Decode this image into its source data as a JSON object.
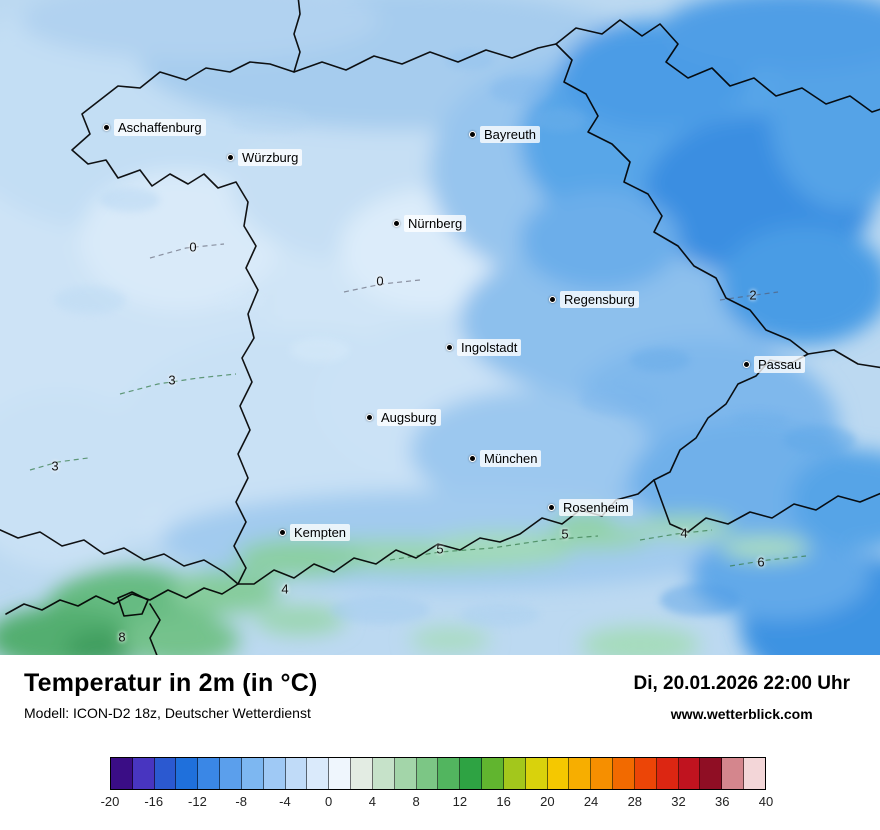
{
  "map": {
    "cities": [
      {
        "name": "Aschaffenburg"
      },
      {
        "name": "Würzburg"
      },
      {
        "name": "Bayreuth"
      },
      {
        "name": "Nürnberg"
      },
      {
        "name": "Regensburg"
      },
      {
        "name": "Ingolstadt"
      },
      {
        "name": "Passau"
      },
      {
        "name": "Augsburg"
      },
      {
        "name": "München"
      },
      {
        "name": "Rosenheim"
      },
      {
        "name": "Kempten"
      }
    ],
    "temp_labels": [
      {
        "value": "0"
      },
      {
        "value": "0"
      },
      {
        "value": "2"
      },
      {
        "value": "3"
      },
      {
        "value": "3"
      },
      {
        "value": "5"
      },
      {
        "value": "5"
      },
      {
        "value": "4"
      },
      {
        "value": "4"
      },
      {
        "value": "6"
      },
      {
        "value": "8"
      }
    ]
  },
  "footer": {
    "title": "Temperatur in 2m (in °C)",
    "model": "Modell: ICON-D2 18z, Deutscher Wetterdienst",
    "datetime": "Di, 20.01.2026 22:00 Uhr",
    "website": "www.wetterblick.com"
  },
  "legend": {
    "unit": "°C",
    "min": -20,
    "max": 40,
    "degrees_per_segment": 2,
    "tick_labels": [
      "-20",
      "-16",
      "-12",
      "-8",
      "-4",
      "0",
      "4",
      "8",
      "12",
      "16",
      "20",
      "24",
      "28",
      "32",
      "36",
      "40"
    ],
    "segment_colors": [
      "#3a0d85",
      "#4835c0",
      "#2b59d0",
      "#1f70dc",
      "#3a87e6",
      "#5b9fec",
      "#7db7f1",
      "#9fc9f5",
      "#c0dbf8",
      "#daeafb",
      "#eff6fd",
      "#e3ece3",
      "#c6e2c9",
      "#a3d5a9",
      "#7cc685",
      "#52b55f",
      "#2ea343",
      "#61b52f",
      "#a3c71c",
      "#d9d20c",
      "#f5c800",
      "#f7ae00",
      "#f68f00",
      "#f26a00",
      "#ec4507",
      "#dc2612",
      "#c0131f",
      "#8f0e24",
      "#d4868d",
      "#f3d6d8"
    ]
  }
}
